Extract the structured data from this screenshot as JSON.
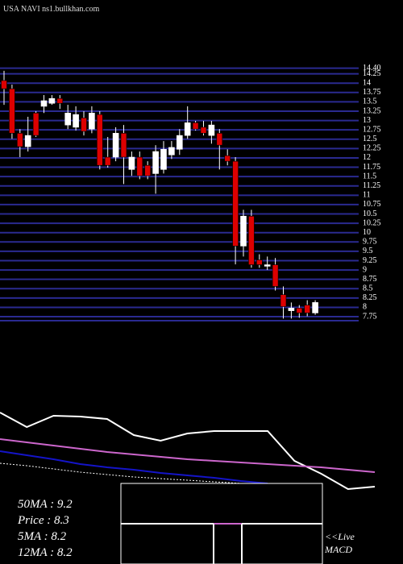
{
  "title": "USA NAVI ns1.bullkhan.com",
  "chart_data": [
    {
      "type": "candlestick",
      "up_color": "#ffffff",
      "down_color": "#dd0000",
      "grid": true,
      "grid_color": "#2a2a90",
      "ylim": [
        7.6,
        14.5
      ],
      "yticks": [
        7.75,
        8,
        8.25,
        8.5,
        8.75,
        9,
        9.25,
        9.5,
        9.75,
        10,
        10.25,
        10.5,
        10.75,
        11,
        11.25,
        11.5,
        11.75,
        12,
        12.25,
        12.5,
        12.75,
        13,
        13.25,
        13.5,
        13.75,
        14,
        14.25,
        {
          "value": 14.4,
          "label": "14.40"
        }
      ],
      "open": [
        14.07,
        13.85,
        12.66,
        12.3,
        13.2,
        13.38,
        13.46,
        13.59,
        12.88,
        12.82,
        13.07,
        12.77,
        13.16,
        12.02,
        12.02,
        12.66,
        11.69,
        12.02,
        11.8,
        11.58,
        11.69,
        12.08,
        12.23,
        12.6,
        12.94,
        12.82,
        12.6,
        12.66,
        12.06,
        11.91,
        9.64,
        10.44,
        9.27,
        9.1,
        9.14,
        8.34,
        7.91,
        7.98,
        8.06,
        7.85
      ],
      "high": [
        14.33,
        13.96,
        12.77,
        13.1,
        13.25,
        13.68,
        13.68,
        13.68,
        13.42,
        13.38,
        13.25,
        13.38,
        13.25,
        12.56,
        12.82,
        12.88,
        12.17,
        12.17,
        11.91,
        12.34,
        12.45,
        12.45,
        12.77,
        13.38,
        12.99,
        12.99,
        12.99,
        12.77,
        12.23,
        12.02,
        10.61,
        10.61,
        9.42,
        9.36,
        9.32,
        8.56,
        8.13,
        8.06,
        8.19,
        8.19
      ],
      "low": [
        13.42,
        12.51,
        12.02,
        12.17,
        12.56,
        13.2,
        13.42,
        13.31,
        12.77,
        12.73,
        12.6,
        12.66,
        11.69,
        11.74,
        11.91,
        11.3,
        11.52,
        11.43,
        11.43,
        11.04,
        11.58,
        11.97,
        12.08,
        12.51,
        12.73,
        12.6,
        12.38,
        11.69,
        11.8,
        9.15,
        9.36,
        9.06,
        9.06,
        9.0,
        8.45,
        7.7,
        7.7,
        7.72,
        7.76,
        7.8
      ],
      "close": [
        13.85,
        12.66,
        12.3,
        12.6,
        12.6,
        13.53,
        13.59,
        13.46,
        13.2,
        13.16,
        12.71,
        13.2,
        11.8,
        11.8,
        12.66,
        12.02,
        12.02,
        11.52,
        11.52,
        12.17,
        12.23,
        12.28,
        12.6,
        12.94,
        12.77,
        12.66,
        12.88,
        12.34,
        11.91,
        9.64,
        10.44,
        9.14,
        9.14,
        9.14,
        8.56,
        8.02,
        7.98,
        7.85,
        7.85,
        8.13
      ]
    },
    {
      "type": "line",
      "xlim": [
        0,
        14
      ],
      "ylim": [
        0,
        120
      ],
      "x": [
        0,
        1,
        2,
        3,
        4,
        5,
        6,
        7,
        8,
        9,
        10,
        11,
        12,
        13,
        14
      ],
      "series": [
        {
          "color": "#ffffff",
          "values": [
            108,
            90,
            104,
            103,
            100,
            80,
            73,
            82,
            85,
            85,
            85,
            48,
            32,
            13,
            16
          ]
        },
        {
          "color": "#cc66cc",
          "values": [
            75,
            71,
            67,
            63,
            59,
            56,
            53,
            50,
            48,
            46,
            44,
            42,
            40,
            37,
            34
          ]
        },
        {
          "color": "#1414c8",
          "values": [
            60,
            55,
            50,
            44,
            40,
            37,
            33,
            30,
            27,
            23,
            20,
            null,
            null,
            null,
            null
          ]
        },
        {
          "color": "#ffffff",
          "dashed": true,
          "values": [
            45,
            42,
            38,
            34,
            31,
            28,
            26,
            24,
            22,
            20,
            null,
            null,
            null,
            null,
            null
          ]
        }
      ]
    }
  ],
  "info": [
    "50MA : 9.2",
    "Price  : 8.3",
    "5MA : 8.2",
    "12MA : 8.2"
  ],
  "macd": {
    "live": "<<Live",
    "label": "MACD"
  }
}
